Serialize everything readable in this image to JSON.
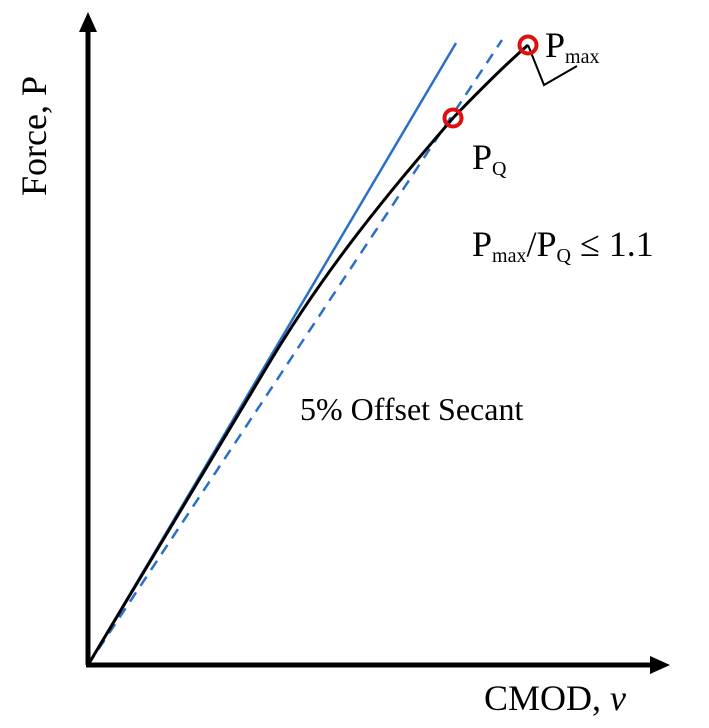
{
  "axes": {
    "y_label": "Force, P",
    "x_label_text": "CMOD, ",
    "x_label_var": "v"
  },
  "points": {
    "pmax_main": "P",
    "pmax_sub": "max",
    "pq_main": "P",
    "pq_sub": "Q"
  },
  "criterion": {
    "p1": "P",
    "p1_sub": "max",
    "slash": "/P",
    "p2_sub": "Q",
    "rest": " ≤ 1.1"
  },
  "secant_label": "5% Offset Secant",
  "colors": {
    "curve": "#000000",
    "tangent": "#2a6fc9",
    "secant": "#2a6fc9",
    "marker": "#e01010",
    "axis": "#000000"
  }
}
